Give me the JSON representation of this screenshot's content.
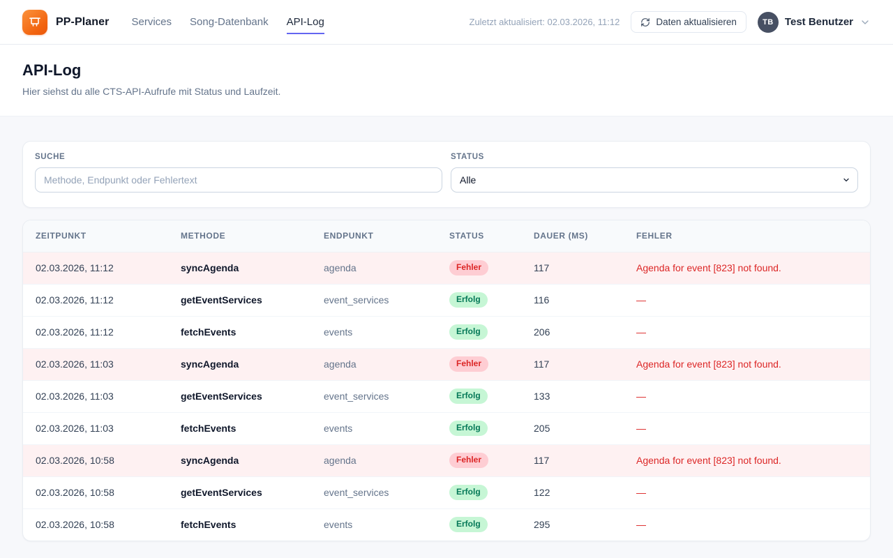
{
  "navbar": {
    "brand": "PP-Planer",
    "links": [
      {
        "label": "Services",
        "active": false
      },
      {
        "label": "Song-Datenbank",
        "active": false
      },
      {
        "label": "API-Log",
        "active": true
      }
    ],
    "last_updated": "Zuletzt aktualisiert: 02.03.2026, 11:12",
    "refresh_button_label": "Daten aktualisieren",
    "user": {
      "initials": "TB",
      "name": "Test Benutzer"
    }
  },
  "page_header": {
    "title": "API-Log",
    "subtitle": "Hier siehst du alle CTS-API-Aufrufe mit Status und Laufzeit."
  },
  "filters": {
    "search_label": "SUCHE",
    "search_placeholder": "Methode, Endpunkt oder Fehlertext",
    "search_value": "",
    "status_label": "STATUS",
    "status_selected": "Alle"
  },
  "table": {
    "columns": [
      "ZEITPUNKT",
      "METHODE",
      "ENDPUNKT",
      "STATUS",
      "DAUER (MS)",
      "FEHLER"
    ],
    "rows": [
      {
        "timestamp": "02.03.2026, 11:12",
        "method": "syncAgenda",
        "endpoint": "agenda",
        "status": "Fehler",
        "type": "error",
        "duration": "117",
        "error": "Agenda for event [823] not found."
      },
      {
        "timestamp": "02.03.2026, 11:12",
        "method": "getEventServices",
        "endpoint": "event_services",
        "status": "Erfolg",
        "type": "success",
        "duration": "116",
        "error": "—"
      },
      {
        "timestamp": "02.03.2026, 11:12",
        "method": "fetchEvents",
        "endpoint": "events",
        "status": "Erfolg",
        "type": "success",
        "duration": "206",
        "error": "—"
      },
      {
        "timestamp": "02.03.2026, 11:03",
        "method": "syncAgenda",
        "endpoint": "agenda",
        "status": "Fehler",
        "type": "error",
        "duration": "117",
        "error": "Agenda for event [823] not found."
      },
      {
        "timestamp": "02.03.2026, 11:03",
        "method": "getEventServices",
        "endpoint": "event_services",
        "status": "Erfolg",
        "type": "success",
        "duration": "133",
        "error": "—"
      },
      {
        "timestamp": "02.03.2026, 11:03",
        "method": "fetchEvents",
        "endpoint": "events",
        "status": "Erfolg",
        "type": "success",
        "duration": "205",
        "error": "—"
      },
      {
        "timestamp": "02.03.2026, 10:58",
        "method": "syncAgenda",
        "endpoint": "agenda",
        "status": "Fehler",
        "type": "error",
        "duration": "117",
        "error": "Agenda for event [823] not found."
      },
      {
        "timestamp": "02.03.2026, 10:58",
        "method": "getEventServices",
        "endpoint": "event_services",
        "status": "Erfolg",
        "type": "success",
        "duration": "122",
        "error": "—"
      },
      {
        "timestamp": "02.03.2026, 10:58",
        "method": "fetchEvents",
        "endpoint": "events",
        "status": "Erfolg",
        "type": "success",
        "duration": "295",
        "error": "—"
      }
    ]
  },
  "colors": {
    "accent_underline": "#6366f1",
    "logo_gradient_start": "#fb923c",
    "logo_gradient_end": "#ea580c",
    "error_text": "#dc2626",
    "error_row_bg": "#fef1f2",
    "badge_error_bg": "#fecdd3",
    "badge_success_text": "#047857",
    "badge_success_bg": "#c6f6d5",
    "avatar_bg": "#475063"
  }
}
